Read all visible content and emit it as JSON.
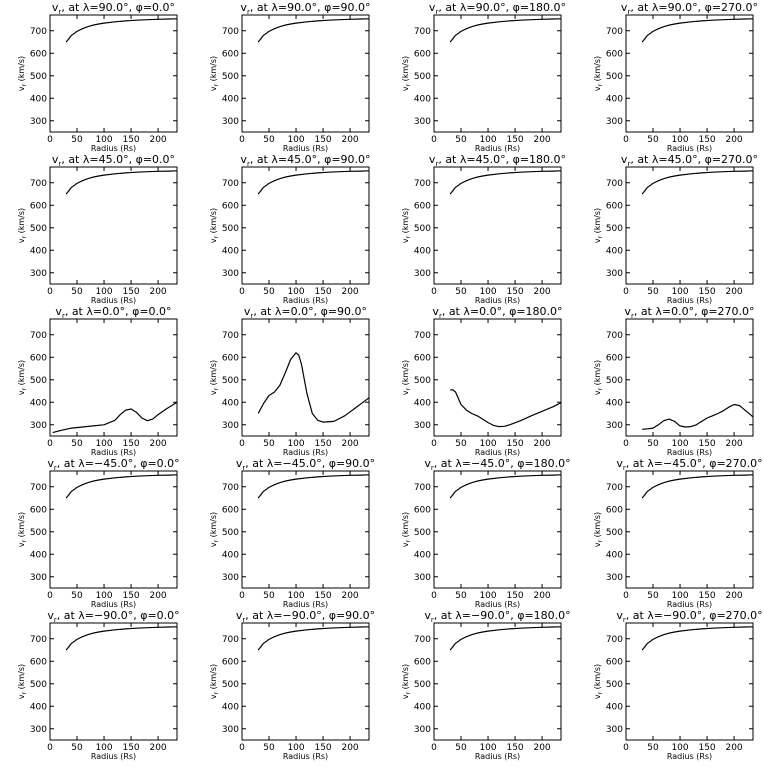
{
  "figure": {
    "xlabel": "Radius (Rs)",
    "ylabel": "v",
    "ylabel_sub": "r",
    "ylabel_unit": "(km/s)"
  },
  "chart_data": [
    {
      "type": "line",
      "title": "v, at λ=90.0°, φ=0.0°",
      "title_var": "v",
      "title_sub": "r",
      "title_rest": " at λ=90.0°, φ=0.0°",
      "xlim": [
        0,
        235
      ],
      "ylim": [
        250,
        770
      ],
      "xticks": [
        0,
        50,
        100,
        150,
        200
      ],
      "yticks": [
        300,
        400,
        500,
        600,
        700
      ],
      "x": [
        30,
        40,
        50,
        60,
        70,
        80,
        90,
        100,
        120,
        140,
        160,
        180,
        200,
        220,
        235
      ],
      "y": [
        650,
        680,
        697,
        709,
        718,
        725,
        730,
        734,
        740,
        744,
        747,
        749,
        751,
        752,
        753
      ]
    },
    {
      "type": "line",
      "title": "v, at λ=90.0°, φ=90.0°",
      "title_var": "v",
      "title_sub": "r",
      "title_rest": " at λ=90.0°, φ=90.0°",
      "xlim": [
        0,
        235
      ],
      "ylim": [
        250,
        770
      ],
      "xticks": [
        0,
        50,
        100,
        150,
        200
      ],
      "yticks": [
        300,
        400,
        500,
        600,
        700
      ],
      "x": [
        30,
        40,
        50,
        60,
        70,
        80,
        90,
        100,
        120,
        140,
        160,
        180,
        200,
        220,
        235
      ],
      "y": [
        650,
        680,
        697,
        709,
        718,
        725,
        730,
        734,
        740,
        744,
        747,
        749,
        751,
        752,
        753
      ]
    },
    {
      "type": "line",
      "title": "v, at λ=90.0°, φ=180.0°",
      "title_var": "v",
      "title_sub": "r",
      "title_rest": " at λ=90.0°, φ=180.0°",
      "xlim": [
        0,
        235
      ],
      "ylim": [
        250,
        770
      ],
      "xticks": [
        0,
        50,
        100,
        150,
        200
      ],
      "yticks": [
        300,
        400,
        500,
        600,
        700
      ],
      "x": [
        30,
        40,
        50,
        60,
        70,
        80,
        90,
        100,
        120,
        140,
        160,
        180,
        200,
        220,
        235
      ],
      "y": [
        650,
        680,
        697,
        709,
        718,
        725,
        730,
        734,
        740,
        744,
        747,
        749,
        751,
        752,
        753
      ]
    },
    {
      "type": "line",
      "title": "v, at λ=90.0°, φ=270.0°",
      "title_var": "v",
      "title_sub": "r",
      "title_rest": " at λ=90.0°, φ=270.0°",
      "xlim": [
        0,
        235
      ],
      "ylim": [
        250,
        770
      ],
      "xticks": [
        0,
        50,
        100,
        150,
        200
      ],
      "yticks": [
        300,
        400,
        500,
        600,
        700
      ],
      "x": [
        30,
        40,
        50,
        60,
        70,
        80,
        90,
        100,
        120,
        140,
        160,
        180,
        200,
        220,
        235
      ],
      "y": [
        650,
        680,
        697,
        709,
        718,
        725,
        730,
        734,
        740,
        744,
        747,
        749,
        751,
        752,
        753
      ]
    },
    {
      "type": "line",
      "title": "v, at λ=45.0°, φ=0.0°",
      "title_var": "v",
      "title_sub": "r",
      "title_rest": " at λ=45.0°, φ=0.0°",
      "xlim": [
        0,
        235
      ],
      "ylim": [
        250,
        770
      ],
      "xticks": [
        0,
        50,
        100,
        150,
        200
      ],
      "yticks": [
        300,
        400,
        500,
        600,
        700
      ],
      "x": [
        30,
        40,
        50,
        60,
        70,
        80,
        90,
        100,
        120,
        140,
        160,
        180,
        200,
        220,
        235
      ],
      "y": [
        650,
        680,
        697,
        709,
        718,
        725,
        730,
        734,
        740,
        744,
        747,
        749,
        751,
        752,
        753
      ]
    },
    {
      "type": "line",
      "title": "v, at λ=45.0°, φ=90.0°",
      "title_var": "v",
      "title_sub": "r",
      "title_rest": " at λ=45.0°, φ=90.0°",
      "xlim": [
        0,
        235
      ],
      "ylim": [
        250,
        770
      ],
      "xticks": [
        0,
        50,
        100,
        150,
        200
      ],
      "yticks": [
        300,
        400,
        500,
        600,
        700
      ],
      "x": [
        30,
        40,
        50,
        60,
        70,
        80,
        90,
        100,
        120,
        140,
        160,
        180,
        200,
        220,
        235
      ],
      "y": [
        650,
        680,
        697,
        709,
        718,
        725,
        730,
        734,
        740,
        744,
        747,
        749,
        751,
        752,
        753
      ]
    },
    {
      "type": "line",
      "title": "v, at λ=45.0°, φ=180.0°",
      "title_var": "v",
      "title_sub": "r",
      "title_rest": " at λ=45.0°, φ=180.0°",
      "xlim": [
        0,
        235
      ],
      "ylim": [
        250,
        770
      ],
      "xticks": [
        0,
        50,
        100,
        150,
        200
      ],
      "yticks": [
        300,
        400,
        500,
        600,
        700
      ],
      "x": [
        30,
        40,
        50,
        60,
        70,
        80,
        90,
        100,
        120,
        140,
        160,
        180,
        200,
        220,
        235
      ],
      "y": [
        650,
        680,
        697,
        709,
        718,
        725,
        730,
        734,
        740,
        744,
        747,
        749,
        751,
        752,
        753
      ]
    },
    {
      "type": "line",
      "title": "v, at λ=45.0°, φ=270.0°",
      "title_var": "v",
      "title_sub": "r",
      "title_rest": " at λ=45.0°, φ=270.0°",
      "xlim": [
        0,
        235
      ],
      "ylim": [
        250,
        770
      ],
      "xticks": [
        0,
        50,
        100,
        150,
        200
      ],
      "yticks": [
        300,
        400,
        500,
        600,
        700
      ],
      "x": [
        30,
        40,
        50,
        60,
        70,
        80,
        90,
        100,
        120,
        140,
        160,
        180,
        200,
        220,
        235
      ],
      "y": [
        650,
        680,
        697,
        709,
        718,
        725,
        730,
        734,
        740,
        744,
        747,
        749,
        751,
        752,
        753
      ]
    },
    {
      "type": "line",
      "title": "v, at λ=0.0°, φ=0.0°",
      "title_var": "v",
      "title_sub": "r",
      "title_rest": " at λ=0.0°, φ=0.0°",
      "xlim": [
        0,
        235
      ],
      "ylim": [
        250,
        770
      ],
      "xticks": [
        0,
        50,
        100,
        150,
        200
      ],
      "yticks": [
        300,
        400,
        500,
        600,
        700
      ],
      "x": [
        5,
        20,
        40,
        60,
        80,
        100,
        120,
        130,
        140,
        150,
        160,
        170,
        180,
        190,
        200,
        215,
        235
      ],
      "y": [
        265,
        275,
        285,
        290,
        295,
        300,
        320,
        345,
        365,
        370,
        355,
        330,
        318,
        325,
        345,
        370,
        400
      ]
    },
    {
      "type": "line",
      "title": "v, at λ=0.0°, φ=90.0°",
      "title_var": "v",
      "title_sub": "r",
      "title_rest": " at λ=0.0°, φ=90.0°",
      "xlim": [
        0,
        235
      ],
      "ylim": [
        250,
        770
      ],
      "xticks": [
        0,
        50,
        100,
        150,
        200
      ],
      "yticks": [
        300,
        400,
        500,
        600,
        700
      ],
      "x": [
        30,
        40,
        50,
        60,
        70,
        80,
        90,
        100,
        105,
        110,
        120,
        130,
        140,
        150,
        170,
        190,
        210,
        235
      ],
      "y": [
        350,
        395,
        430,
        445,
        475,
        530,
        590,
        620,
        610,
        570,
        440,
        350,
        320,
        312,
        315,
        340,
        375,
        420
      ]
    },
    {
      "type": "line",
      "title": "v, at λ=0.0°, φ=180.0°",
      "title_var": "v",
      "title_sub": "r",
      "title_rest": " at λ=0.0°, φ=180.0°",
      "xlim": [
        0,
        235
      ],
      "ylim": [
        250,
        770
      ],
      "xticks": [
        0,
        50,
        100,
        150,
        200
      ],
      "yticks": [
        300,
        400,
        500,
        600,
        700
      ],
      "x": [
        30,
        35,
        40,
        50,
        60,
        70,
        80,
        90,
        100,
        110,
        120,
        130,
        140,
        160,
        180,
        200,
        220,
        235
      ],
      "y": [
        455,
        455,
        445,
        390,
        365,
        350,
        340,
        325,
        310,
        297,
        292,
        293,
        300,
        318,
        340,
        360,
        380,
        398
      ]
    },
    {
      "type": "line",
      "title": "v, at λ=0.0°, φ=270.0°",
      "title_var": "v",
      "title_sub": "r",
      "title_rest": " at λ=0.0°, φ=270.0°",
      "xlim": [
        0,
        235
      ],
      "ylim": [
        250,
        770
      ],
      "xticks": [
        0,
        50,
        100,
        150,
        200
      ],
      "yticks": [
        300,
        400,
        500,
        600,
        700
      ],
      "x": [
        30,
        40,
        50,
        60,
        70,
        80,
        90,
        100,
        110,
        120,
        130,
        140,
        150,
        160,
        170,
        180,
        190,
        200,
        210,
        220,
        230,
        235
      ],
      "y": [
        280,
        282,
        285,
        300,
        318,
        325,
        315,
        295,
        290,
        292,
        300,
        315,
        330,
        340,
        350,
        362,
        378,
        390,
        385,
        365,
        345,
        335
      ]
    },
    {
      "type": "line",
      "title": "v, at λ=−45.0°, φ=0.0°",
      "title_var": "v",
      "title_sub": "r",
      "title_rest": " at λ=−45.0°, φ=0.0°",
      "xlim": [
        0,
        235
      ],
      "ylim": [
        250,
        770
      ],
      "xticks": [
        0,
        50,
        100,
        150,
        200
      ],
      "yticks": [
        300,
        400,
        500,
        600,
        700
      ],
      "x": [
        30,
        40,
        50,
        60,
        70,
        80,
        90,
        100,
        120,
        140,
        160,
        180,
        200,
        220,
        235
      ],
      "y": [
        650,
        680,
        697,
        709,
        718,
        725,
        730,
        734,
        740,
        744,
        747,
        749,
        751,
        752,
        753
      ]
    },
    {
      "type": "line",
      "title": "v, at λ=−45.0°, φ=90.0°",
      "title_var": "v",
      "title_sub": "r",
      "title_rest": " at λ=−45.0°, φ=90.0°",
      "xlim": [
        0,
        235
      ],
      "ylim": [
        250,
        770
      ],
      "xticks": [
        0,
        50,
        100,
        150,
        200
      ],
      "yticks": [
        300,
        400,
        500,
        600,
        700
      ],
      "x": [
        30,
        40,
        50,
        60,
        70,
        80,
        90,
        100,
        120,
        140,
        160,
        180,
        200,
        220,
        235
      ],
      "y": [
        650,
        680,
        697,
        709,
        718,
        725,
        730,
        734,
        740,
        744,
        747,
        749,
        751,
        752,
        753
      ]
    },
    {
      "type": "line",
      "title": "v, at λ=−45.0°, φ=180.0°",
      "title_var": "v",
      "title_sub": "r",
      "title_rest": " at λ=−45.0°, φ=180.0°",
      "xlim": [
        0,
        235
      ],
      "ylim": [
        250,
        770
      ],
      "xticks": [
        0,
        50,
        100,
        150,
        200
      ],
      "yticks": [
        300,
        400,
        500,
        600,
        700
      ],
      "x": [
        30,
        40,
        50,
        60,
        70,
        80,
        90,
        100,
        120,
        140,
        160,
        180,
        200,
        220,
        235
      ],
      "y": [
        650,
        680,
        697,
        709,
        718,
        725,
        730,
        734,
        740,
        744,
        747,
        749,
        751,
        752,
        753
      ]
    },
    {
      "type": "line",
      "title": "v, at λ=−45.0°, φ=270.0°",
      "title_var": "v",
      "title_sub": "r",
      "title_rest": " at λ=−45.0°, φ=270.0°",
      "xlim": [
        0,
        235
      ],
      "ylim": [
        250,
        770
      ],
      "xticks": [
        0,
        50,
        100,
        150,
        200
      ],
      "yticks": [
        300,
        400,
        500,
        600,
        700
      ],
      "x": [
        30,
        40,
        50,
        60,
        70,
        80,
        90,
        100,
        120,
        140,
        160,
        180,
        200,
        220,
        235
      ],
      "y": [
        650,
        680,
        697,
        709,
        718,
        725,
        730,
        734,
        740,
        744,
        747,
        749,
        751,
        752,
        753
      ]
    },
    {
      "type": "line",
      "title": "v, at λ=−90.0°, φ=0.0°",
      "title_var": "v",
      "title_sub": "r",
      "title_rest": " at λ=−90.0°, φ=0.0°",
      "xlim": [
        0,
        235
      ],
      "ylim": [
        250,
        770
      ],
      "xticks": [
        0,
        50,
        100,
        150,
        200
      ],
      "yticks": [
        300,
        400,
        500,
        600,
        700
      ],
      "x": [
        30,
        40,
        50,
        60,
        70,
        80,
        90,
        100,
        120,
        140,
        160,
        180,
        200,
        220,
        235
      ],
      "y": [
        650,
        680,
        697,
        709,
        718,
        725,
        730,
        734,
        740,
        744,
        747,
        749,
        751,
        752,
        753
      ]
    },
    {
      "type": "line",
      "title": "v, at λ=−90.0°, φ=90.0°",
      "title_var": "v",
      "title_sub": "r",
      "title_rest": " at λ=−90.0°, φ=90.0°",
      "xlim": [
        0,
        235
      ],
      "ylim": [
        250,
        770
      ],
      "xticks": [
        0,
        50,
        100,
        150,
        200
      ],
      "yticks": [
        300,
        400,
        500,
        600,
        700
      ],
      "x": [
        30,
        40,
        50,
        60,
        70,
        80,
        90,
        100,
        120,
        140,
        160,
        180,
        200,
        220,
        235
      ],
      "y": [
        650,
        680,
        697,
        709,
        718,
        725,
        730,
        734,
        740,
        744,
        747,
        749,
        751,
        752,
        753
      ]
    },
    {
      "type": "line",
      "title": "v, at λ=−90.0°, φ=180.0°",
      "title_var": "v",
      "title_sub": "r",
      "title_rest": " at λ=−90.0°, φ=180.0°",
      "xlim": [
        0,
        235
      ],
      "ylim": [
        250,
        770
      ],
      "xticks": [
        0,
        50,
        100,
        150,
        200
      ],
      "yticks": [
        300,
        400,
        500,
        600,
        700
      ],
      "x": [
        30,
        40,
        50,
        60,
        70,
        80,
        90,
        100,
        120,
        140,
        160,
        180,
        200,
        220,
        235
      ],
      "y": [
        650,
        680,
        697,
        709,
        718,
        725,
        730,
        734,
        740,
        744,
        747,
        749,
        751,
        752,
        753
      ]
    },
    {
      "type": "line",
      "title": "v, at λ=−90.0°, φ=270.0°",
      "title_var": "v",
      "title_sub": "r",
      "title_rest": " at λ=−90.0°, φ=270.0°",
      "xlim": [
        0,
        235
      ],
      "ylim": [
        250,
        770
      ],
      "xticks": [
        0,
        50,
        100,
        150,
        200
      ],
      "yticks": [
        300,
        400,
        500,
        600,
        700
      ],
      "x": [
        30,
        40,
        50,
        60,
        70,
        80,
        90,
        100,
        120,
        140,
        160,
        180,
        200,
        220,
        235
      ],
      "y": [
        650,
        680,
        697,
        709,
        718,
        725,
        730,
        734,
        740,
        744,
        747,
        749,
        751,
        752,
        753
      ]
    }
  ]
}
